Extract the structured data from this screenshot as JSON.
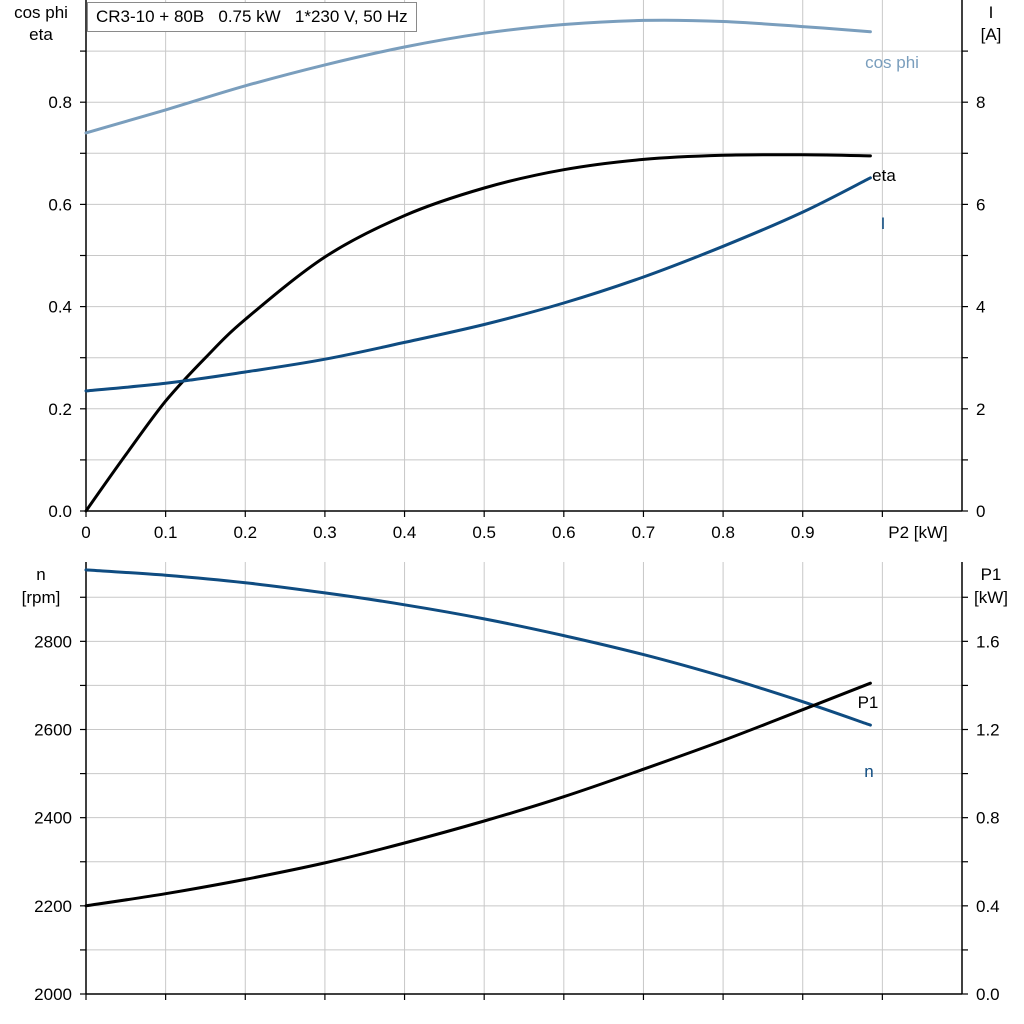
{
  "chart_data": [
    {
      "type": "line",
      "title": "CR3-10 + 80B   0.75 kW   1*230 V, 50 Hz",
      "xlabel": "P2 [kW]",
      "xlim": [
        0,
        1.1
      ],
      "x_ticks": [
        "0",
        "0.1",
        "0.2",
        "0.3",
        "0.4",
        "0.5",
        "0.6",
        "0.7",
        "0.8",
        "0.9"
      ],
      "y_left": {
        "label_lines": [
          "cos phi",
          "eta"
        ],
        "lim": [
          0,
          1.0
        ],
        "ticks": [
          "0.0",
          "0.2",
          "0.4",
          "0.6",
          "0.8"
        ]
      },
      "y_right": {
        "label_lines": [
          "I",
          "[A]"
        ],
        "lim": [
          0,
          10
        ],
        "ticks": [
          "0",
          "2",
          "4",
          "6",
          "8"
        ]
      },
      "grid": true,
      "series": [
        {
          "name": "cos phi",
          "axis": "left",
          "color": "#7a9ebd",
          "x": [
            0,
            0.1,
            0.2,
            0.3,
            0.4,
            0.5,
            0.6,
            0.7,
            0.8,
            0.9,
            0.985
          ],
          "y": [
            0.74,
            0.785,
            0.832,
            0.873,
            0.908,
            0.935,
            0.952,
            0.96,
            0.958,
            0.948,
            0.938
          ]
        },
        {
          "name": "eta",
          "axis": "left",
          "color": "#000000",
          "x": [
            0,
            0.05,
            0.1,
            0.15,
            0.2,
            0.3,
            0.4,
            0.5,
            0.6,
            0.7,
            0.8,
            0.9,
            0.985
          ],
          "y": [
            0.0,
            0.11,
            0.215,
            0.3,
            0.375,
            0.497,
            0.578,
            0.632,
            0.668,
            0.688,
            0.696,
            0.697,
            0.695
          ]
        },
        {
          "name": "I",
          "axis": "right",
          "color": "#0f4c81",
          "x": [
            0,
            0.1,
            0.2,
            0.3,
            0.4,
            0.5,
            0.6,
            0.7,
            0.8,
            0.9,
            0.985
          ],
          "y": [
            2.35,
            2.5,
            2.72,
            2.97,
            3.3,
            3.65,
            4.07,
            4.58,
            5.18,
            5.85,
            6.52
          ]
        }
      ]
    },
    {
      "type": "line",
      "xlim": [
        0,
        1.1
      ],
      "y_left": {
        "label_lines": [
          "n",
          "[rpm]"
        ],
        "lim": [
          2000,
          2980
        ],
        "ticks": [
          "2000",
          "2200",
          "2400",
          "2600",
          "2800"
        ]
      },
      "y_right": {
        "label_lines": [
          "P1",
          "[kW]"
        ],
        "lim": [
          0,
          1.96
        ],
        "ticks": [
          "0.0",
          "0.4",
          "0.8",
          "1.2",
          "1.6"
        ]
      },
      "grid": true,
      "series": [
        {
          "name": "n",
          "axis": "left",
          "color": "#0f4c81",
          "x": [
            0,
            0.1,
            0.2,
            0.3,
            0.4,
            0.5,
            0.6,
            0.7,
            0.8,
            0.9,
            0.985
          ],
          "y": [
            2962,
            2950,
            2933,
            2910,
            2883,
            2851,
            2813,
            2770,
            2720,
            2663,
            2610
          ]
        },
        {
          "name": "P1",
          "axis": "right",
          "color": "#000000",
          "x": [
            0,
            0.1,
            0.2,
            0.3,
            0.4,
            0.5,
            0.6,
            0.7,
            0.8,
            0.9,
            0.985
          ],
          "y": [
            0.4,
            0.455,
            0.52,
            0.595,
            0.685,
            0.785,
            0.895,
            1.02,
            1.15,
            1.29,
            1.41
          ]
        }
      ]
    }
  ]
}
